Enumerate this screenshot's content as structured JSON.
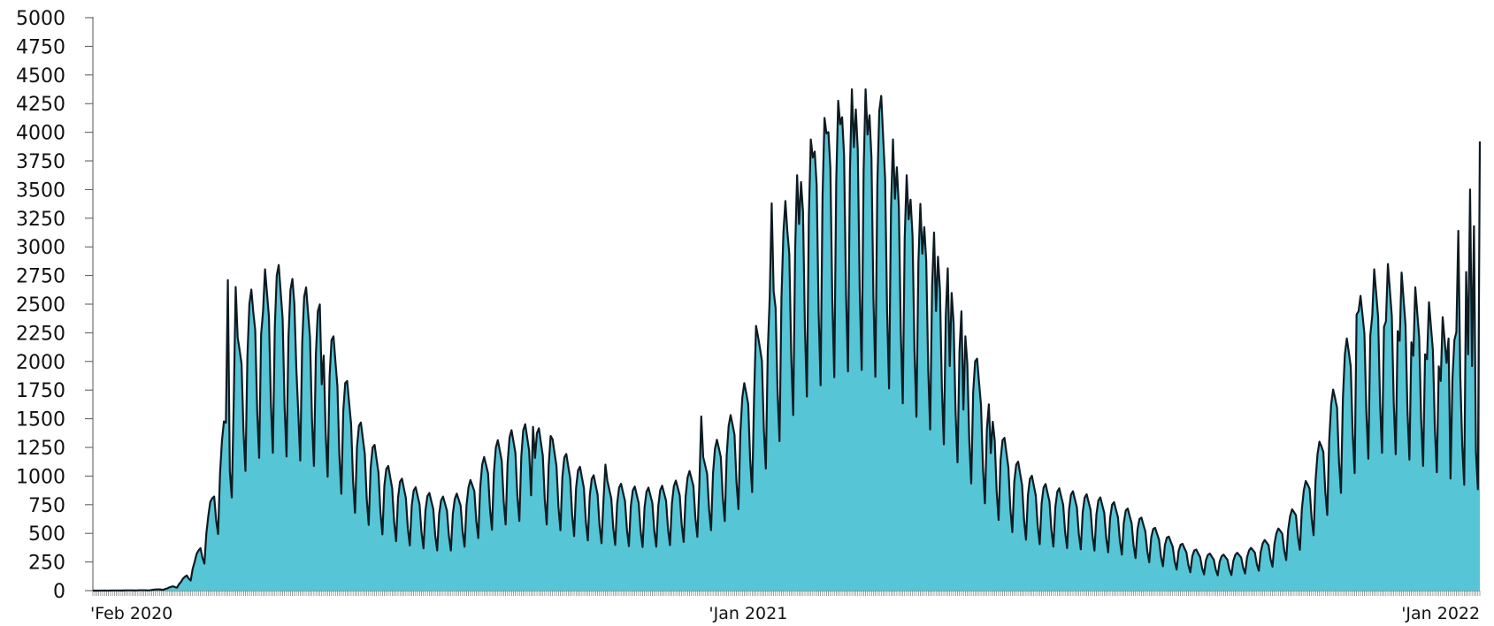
{
  "chart_data": {
    "type": "area",
    "title": "",
    "xlabel": "",
    "ylabel": "",
    "ylim": [
      0,
      5000
    ],
    "yticks": [
      0,
      250,
      500,
      750,
      1000,
      1250,
      1500,
      1750,
      2000,
      2250,
      2500,
      2750,
      3000,
      3250,
      3500,
      3750,
      4000,
      4250,
      4500,
      4750,
      5000
    ],
    "ytick_labels": [
      "0",
      "250",
      "500",
      "750",
      "1000",
      "1250",
      "1500",
      "1750",
      "2000",
      "2250",
      "2500",
      "2750",
      "3000",
      "3250",
      "3500",
      "3750",
      "4000",
      "4250",
      "4500",
      "4750",
      "5000"
    ],
    "x_start": "2020-02-01",
    "x_end": "2022-01-10",
    "xtick_labels": [
      {
        "date": "2020-02-01",
        "label": "'Feb 2020"
      },
      {
        "date": "2021-01-01",
        "label": "'Jan 2021"
      },
      {
        "date": "2022-01-01",
        "label": "'Jan 2022"
      }
    ],
    "grid": false,
    "legend": "none",
    "fill_color": "#56c5d5",
    "line_color": "#0d1b22",
    "series": [
      {
        "base_envelope": [
          [
            "2020-02-01",
            0
          ],
          [
            "2020-02-29",
            3
          ],
          [
            "2020-03-10",
            15
          ],
          [
            "2020-03-17",
            60
          ],
          [
            "2020-03-24",
            200
          ],
          [
            "2020-03-31",
            520
          ],
          [
            "2020-04-07",
            1050
          ],
          [
            "2020-04-14",
            1650
          ],
          [
            "2020-04-21",
            2000
          ],
          [
            "2020-04-28",
            2150
          ],
          [
            "2020-05-05",
            2200
          ],
          [
            "2020-05-12",
            2100
          ],
          [
            "2020-05-19",
            2050
          ],
          [
            "2020-05-26",
            1950
          ],
          [
            "2020-06-02",
            1750
          ],
          [
            "2020-06-09",
            1450
          ],
          [
            "2020-06-16",
            1150
          ],
          [
            "2020-06-23",
            1000
          ],
          [
            "2020-06-30",
            850
          ],
          [
            "2020-07-07",
            760
          ],
          [
            "2020-07-14",
            700
          ],
          [
            "2020-07-21",
            660
          ],
          [
            "2020-07-28",
            630
          ],
          [
            "2020-08-04",
            640
          ],
          [
            "2020-08-11",
            720
          ],
          [
            "2020-08-18",
            880
          ],
          [
            "2020-08-25",
            1000
          ],
          [
            "2020-09-01",
            1070
          ],
          [
            "2020-09-08",
            1120
          ],
          [
            "2020-09-15",
            1100
          ],
          [
            "2020-09-22",
            1030
          ],
          [
            "2020-09-29",
            930
          ],
          [
            "2020-10-06",
            840
          ],
          [
            "2020-10-13",
            780
          ],
          [
            "2020-10-20",
            740
          ],
          [
            "2020-10-27",
            720
          ],
          [
            "2020-11-03",
            700
          ],
          [
            "2020-11-10",
            690
          ],
          [
            "2020-11-17",
            700
          ],
          [
            "2020-11-24",
            730
          ],
          [
            "2020-12-01",
            790
          ],
          [
            "2020-12-08",
            880
          ],
          [
            "2020-12-15",
            990
          ],
          [
            "2020-12-22",
            1150
          ],
          [
            "2020-12-29",
            1350
          ],
          [
            "2021-01-05",
            1650
          ],
          [
            "2021-01-12",
            2050
          ],
          [
            "2021-01-19",
            2500
          ],
          [
            "2021-01-26",
            2900
          ],
          [
            "2021-02-02",
            3150
          ],
          [
            "2021-02-09",
            3300
          ],
          [
            "2021-02-16",
            3420
          ],
          [
            "2021-02-23",
            3500
          ],
          [
            "2021-03-02",
            3500
          ],
          [
            "2021-03-09",
            3350
          ],
          [
            "2021-03-16",
            3150
          ],
          [
            "2021-03-23",
            2900
          ],
          [
            "2021-03-30",
            2700
          ],
          [
            "2021-04-06",
            2500
          ],
          [
            "2021-04-13",
            2250
          ],
          [
            "2021-04-20",
            1950
          ],
          [
            "2021-04-27",
            1600
          ],
          [
            "2021-05-04",
            1300
          ],
          [
            "2021-05-11",
            1050
          ],
          [
            "2021-05-18",
            880
          ],
          [
            "2021-05-25",
            780
          ],
          [
            "2021-06-01",
            720
          ],
          [
            "2021-06-08",
            690
          ],
          [
            "2021-06-15",
            670
          ],
          [
            "2021-06-22",
            650
          ],
          [
            "2021-06-29",
            630
          ],
          [
            "2021-07-06",
            600
          ],
          [
            "2021-07-13",
            560
          ],
          [
            "2021-07-20",
            500
          ],
          [
            "2021-07-27",
            430
          ],
          [
            "2021-08-03",
            370
          ],
          [
            "2021-08-10",
            320
          ],
          [
            "2021-08-17",
            280
          ],
          [
            "2021-08-24",
            250
          ],
          [
            "2021-08-31",
            240
          ],
          [
            "2021-09-07",
            250
          ],
          [
            "2021-09-14",
            280
          ],
          [
            "2021-09-21",
            330
          ],
          [
            "2021-09-28",
            400
          ],
          [
            "2021-10-05",
            520
          ],
          [
            "2021-10-12",
            700
          ],
          [
            "2021-10-19",
            950
          ],
          [
            "2021-10-26",
            1300
          ],
          [
            "2021-11-02",
            1650
          ],
          [
            "2021-11-09",
            1950
          ],
          [
            "2021-11-16",
            2150
          ],
          [
            "2021-11-23",
            2200
          ],
          [
            "2021-11-30",
            2150
          ],
          [
            "2021-12-07",
            2050
          ],
          [
            "2021-12-14",
            1950
          ],
          [
            "2021-12-21",
            1850
          ],
          [
            "2021-12-28",
            1750
          ],
          [
            "2022-01-04",
            1650
          ],
          [
            "2022-01-10",
            1600
          ]
        ],
        "weekday_factors": [
          0.55,
          1.05,
          1.25,
          1.3,
          1.2,
          1.1,
          0.75
        ],
        "spikes": [
          [
            "2020-04-10",
            2710
          ],
          [
            "2020-04-14",
            2650
          ],
          [
            "2020-04-23",
            2430
          ],
          [
            "2020-04-28",
            2440
          ],
          [
            "2020-05-15",
            1940
          ],
          [
            "2020-05-28",
            1800
          ],
          [
            "2020-09-13",
            1430
          ],
          [
            "2020-09-22",
            1350
          ],
          [
            "2020-10-20",
            1100
          ],
          [
            "2020-12-08",
            1520
          ],
          [
            "2021-01-05",
            2310
          ],
          [
            "2021-01-13",
            3380
          ],
          [
            "2021-01-20",
            3400
          ],
          [
            "2021-01-27",
            3200
          ],
          [
            "2021-02-03",
            3780
          ],
          [
            "2021-02-10",
            3990
          ],
          [
            "2021-02-17",
            4070
          ],
          [
            "2021-02-24",
            3870
          ],
          [
            "2021-03-03",
            3980
          ],
          [
            "2021-03-17",
            3420
          ],
          [
            "2021-03-24",
            3240
          ],
          [
            "2021-03-31",
            2940
          ],
          [
            "2021-04-07",
            2440
          ],
          [
            "2021-04-14",
            1960
          ],
          [
            "2021-04-21",
            1580
          ],
          [
            "2021-05-05",
            1200
          ],
          [
            "2021-11-08",
            2410
          ],
          [
            "2021-11-16",
            2400
          ],
          [
            "2021-11-23",
            2350
          ],
          [
            "2021-11-30",
            2180
          ],
          [
            "2021-12-07",
            2050
          ],
          [
            "2021-12-14",
            2020
          ],
          [
            "2021-12-21",
            1830
          ],
          [
            "2021-12-25",
            2200
          ],
          [
            "2021-12-30",
            3140
          ],
          [
            "2022-01-03",
            2780
          ],
          [
            "2022-01-05",
            3500
          ],
          [
            "2022-01-07",
            3180
          ],
          [
            "2022-01-10",
            3920
          ]
        ]
      }
    ]
  }
}
